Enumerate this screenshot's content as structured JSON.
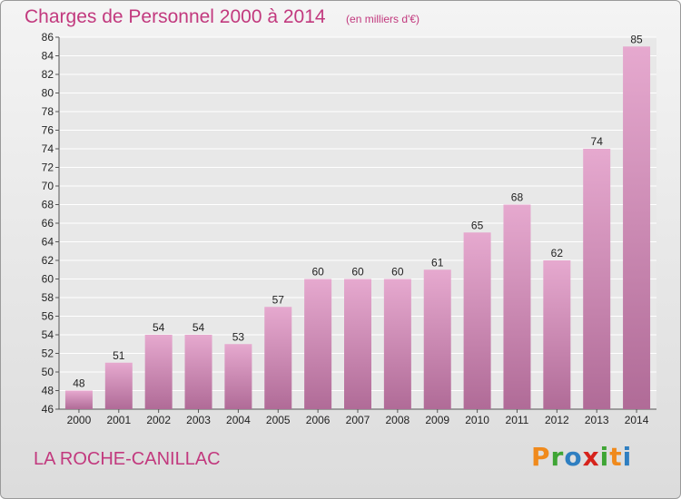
{
  "chart_data": {
    "type": "bar",
    "title": "Charges de Personnel 2000 à 2014",
    "subtitle": "(en milliers d'€)",
    "categories": [
      "2000",
      "2001",
      "2002",
      "2003",
      "2004",
      "2005",
      "2006",
      "2007",
      "2008",
      "2009",
      "2010",
      "2011",
      "2012",
      "2013",
      "2014"
    ],
    "values": [
      48,
      51,
      54,
      54,
      53,
      57,
      60,
      60,
      60,
      61,
      65,
      68,
      62,
      74,
      85
    ],
    "ylim": [
      46,
      86
    ],
    "yticks": [
      46,
      48,
      50,
      52,
      54,
      56,
      58,
      60,
      62,
      64,
      66,
      68,
      70,
      72,
      74,
      76,
      78,
      80,
      82,
      84,
      86
    ],
    "grid": true,
    "bar_color_top": "#e6a9cf",
    "bar_color_bottom": "#b06b97"
  },
  "footer": {
    "place": "LA ROCHE-CANILLAC",
    "brand_letters": [
      {
        "ch": "P",
        "color": "#f08a1c"
      },
      {
        "ch": "r",
        "color": "#3fa535"
      },
      {
        "ch": "o",
        "color": "#2f7fc1"
      },
      {
        "ch": "x",
        "color": "#d6231c"
      },
      {
        "ch": "i",
        "color": "#3fa535"
      },
      {
        "ch": "t",
        "color": "#f08a1c"
      },
      {
        "ch": "i",
        "color": "#2f7fc1"
      }
    ]
  },
  "colors": {
    "accent": "#c2397e",
    "text": "#222222"
  }
}
